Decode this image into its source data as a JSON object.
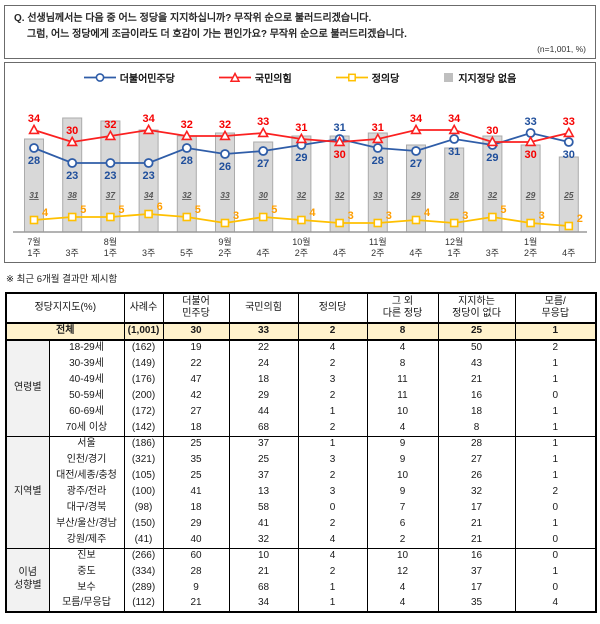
{
  "question": {
    "line1": "Q. 선생님께서는 다음 중 어느 정당을 지지하십니까? 무작위 순으로 불러드리겠습니다.",
    "line2": "그럼, 어느 정당에게 조금이라도 더 호감이 가는 편인가요? 무작위 순으로 불러드리겠습니다.",
    "sample_note": "(n=1,001, %)"
  },
  "chart_data": {
    "type": "line+bar",
    "title": "정당지지도 추이",
    "legend_position": "top",
    "ylim": [
      0,
      45
    ],
    "grid": false,
    "categories": [
      [
        "7월",
        "1주"
      ],
      [
        "",
        "3주"
      ],
      [
        "8월",
        "1주"
      ],
      [
        "",
        "3주"
      ],
      [
        "",
        "5주"
      ],
      [
        "9월",
        "2주"
      ],
      [
        "",
        "4주"
      ],
      [
        "10월",
        "2주"
      ],
      [
        "",
        "4주"
      ],
      [
        "11월",
        "2주"
      ],
      [
        "",
        "4주"
      ],
      [
        "12월",
        "1주"
      ],
      [
        "",
        "3주"
      ],
      [
        "1월",
        "2주"
      ],
      [
        "",
        "4주"
      ]
    ],
    "series": [
      {
        "name": "더불어민주당",
        "type": "line",
        "marker": "circle",
        "color": "#2f5da8",
        "label_color": "#1f4e9b",
        "values": [
          28,
          23,
          23,
          23,
          28,
          26,
          27,
          29,
          31,
          28,
          27,
          31,
          29,
          33,
          30
        ]
      },
      {
        "name": "국민의힘",
        "type": "line",
        "marker": "triangle",
        "color": "#fb2020",
        "label_color": "#f60000",
        "values": [
          34,
          30,
          32,
          34,
          32,
          32,
          33,
          31,
          30,
          31,
          34,
          34,
          30,
          30,
          33
        ]
      },
      {
        "name": "정의당",
        "type": "line",
        "marker": "square",
        "color": "#ffc000",
        "label_color": "#ff9e00",
        "values": [
          4,
          5,
          5,
          6,
          5,
          3,
          5,
          4,
          3,
          3,
          4,
          3,
          5,
          3,
          2
        ]
      },
      {
        "name": "지지정당 없음",
        "type": "bar",
        "color": "#d8d8d8",
        "label_color": "#575757",
        "values": [
          31,
          38,
          37,
          34,
          32,
          33,
          30,
          32,
          32,
          33,
          29,
          28,
          32,
          29,
          25
        ]
      }
    ]
  },
  "note": "※ 최근 6개월 결과만 제시함",
  "table": {
    "headers": [
      "정당지지도(%)",
      "사례수",
      "더불어\n민주당",
      "국민의힘",
      "정의당",
      "그 외\n다른 정당",
      "지지하는\n정당이 없다",
      "모름/\n무응답"
    ],
    "total_row": {
      "label": "전체",
      "n": "(1,001)",
      "values": [
        "30",
        "33",
        "2",
        "8",
        "25",
        "1"
      ]
    },
    "groups": [
      {
        "label": "연령별",
        "rows": [
          {
            "category": "18-29세",
            "n": "(162)",
            "values": [
              "19",
              "22",
              "4",
              "4",
              "50",
              "2"
            ]
          },
          {
            "category": "30-39세",
            "n": "(149)",
            "values": [
              "22",
              "24",
              "2",
              "8",
              "43",
              "1"
            ]
          },
          {
            "category": "40-49세",
            "n": "(176)",
            "values": [
              "47",
              "18",
              "3",
              "11",
              "21",
              "1"
            ]
          },
          {
            "category": "50-59세",
            "n": "(200)",
            "values": [
              "42",
              "29",
              "2",
              "11",
              "16",
              "0"
            ]
          },
          {
            "category": "60-69세",
            "n": "(172)",
            "values": [
              "27",
              "44",
              "1",
              "10",
              "18",
              "1"
            ]
          },
          {
            "category": "70세 이상",
            "n": "(142)",
            "values": [
              "18",
              "68",
              "2",
              "4",
              "8",
              "1"
            ]
          }
        ]
      },
      {
        "label": "지역별",
        "rows": [
          {
            "category": "서울",
            "n": "(186)",
            "values": [
              "25",
              "37",
              "1",
              "9",
              "28",
              "1"
            ]
          },
          {
            "category": "인천/경기",
            "n": "(321)",
            "values": [
              "35",
              "25",
              "3",
              "9",
              "27",
              "1"
            ]
          },
          {
            "category": "대전/세종/충청",
            "n": "(105)",
            "values": [
              "25",
              "37",
              "2",
              "10",
              "26",
              "1"
            ]
          },
          {
            "category": "광주/전라",
            "n": "(100)",
            "values": [
              "41",
              "13",
              "3",
              "9",
              "32",
              "2"
            ]
          },
          {
            "category": "대구/경북",
            "n": "(98)",
            "values": [
              "18",
              "58",
              "0",
              "7",
              "17",
              "0"
            ]
          },
          {
            "category": "부산/울산/경남",
            "n": "(150)",
            "values": [
              "29",
              "41",
              "2",
              "6",
              "21",
              "1"
            ]
          },
          {
            "category": "강원/제주",
            "n": "(41)",
            "values": [
              "40",
              "32",
              "4",
              "2",
              "21",
              "0"
            ]
          }
        ]
      },
      {
        "label": "이념\n성향별",
        "rows": [
          {
            "category": "진보",
            "n": "(266)",
            "values": [
              "60",
              "10",
              "4",
              "10",
              "16",
              "0"
            ]
          },
          {
            "category": "중도",
            "n": "(334)",
            "values": [
              "28",
              "21",
              "2",
              "12",
              "37",
              "1"
            ]
          },
          {
            "category": "보수",
            "n": "(289)",
            "values": [
              "9",
              "68",
              "1",
              "4",
              "17",
              "0"
            ]
          },
          {
            "category": "모름/무응답",
            "n": "(112)",
            "values": [
              "21",
              "34",
              "1",
              "4",
              "35",
              "4"
            ]
          }
        ]
      }
    ]
  }
}
